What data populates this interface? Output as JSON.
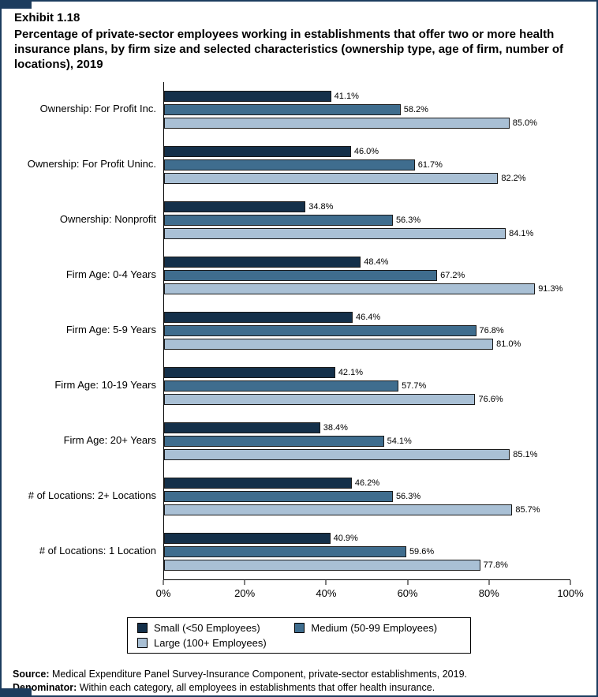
{
  "exhibit": {
    "number": "Exhibit 1.18",
    "title": "Percentage of private-sector employees working in establishments that offer two or more health insurance plans, by firm size and selected characteristics (ownership type, age of firm, number of locations), 2019"
  },
  "chart_data": {
    "type": "bar",
    "orientation": "horizontal",
    "title": "Percentage of private-sector employees working in establishments that offer two or more health insurance plans, by firm size and selected characteristics (ownership type, age of firm, number of locations), 2019",
    "categories": [
      "Ownership: For Profit Inc.",
      "Ownership: For Profit Uninc.",
      "Ownership: Nonprofit",
      "Firm Age: 0-4 Years",
      "Firm Age: 5-9 Years",
      "Firm Age: 10-19 Years",
      "Firm Age: 20+ Years",
      "# of Locations: 2+ Locations",
      "# of Locations: 1 Location"
    ],
    "series": [
      {
        "name": "Small (<50 Employees)",
        "color": "#14304a",
        "values": [
          41.1,
          46.0,
          34.8,
          48.4,
          46.4,
          42.1,
          38.4,
          46.2,
          40.9
        ]
      },
      {
        "name": "Medium (50-99 Employees)",
        "color": "#3f6d8e",
        "values": [
          58.2,
          61.7,
          56.3,
          67.2,
          76.8,
          57.7,
          54.1,
          56.3,
          59.6
        ]
      },
      {
        "name": "Large (100+ Employees)",
        "color": "#a9c0d5",
        "values": [
          85.0,
          82.2,
          84.1,
          91.3,
          81.0,
          76.6,
          85.1,
          85.7,
          77.8
        ]
      }
    ],
    "xlim": [
      0,
      100
    ],
    "x_ticks": [
      {
        "value": 0,
        "label": "0%"
      },
      {
        "value": 20,
        "label": "20%"
      },
      {
        "value": 40,
        "label": "40%"
      },
      {
        "value": 60,
        "label": "60%"
      },
      {
        "value": 80,
        "label": "80%"
      },
      {
        "value": 100,
        "label": "100%"
      }
    ],
    "grid": false,
    "legend_position": "bottom",
    "value_label_format": "percent_one_decimal"
  },
  "footer": {
    "source_label": "Source:",
    "source_text": " Medical Expenditure Panel Survey-Insurance Component, private-sector establishments, 2019.",
    "denominator_label": "Denominator:",
    "denominator_text": " Within each category, all employees in establishments that offer health insurance."
  }
}
